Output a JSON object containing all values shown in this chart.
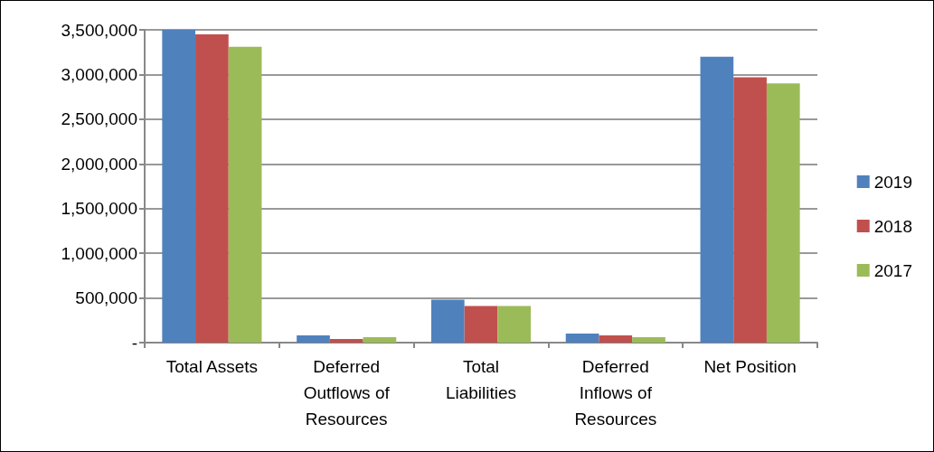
{
  "chart_data": {
    "type": "bar",
    "categories": [
      "Total Assets",
      "Deferred Outflows of Resources",
      "Total Liabilities",
      "Deferred Inflows of Resources",
      "Net Position"
    ],
    "series": [
      {
        "name": "2019",
        "color": "#4f81bd",
        "values": [
          3500000,
          80000,
          480000,
          100000,
          3200000
        ]
      },
      {
        "name": "2018",
        "color": "#c0504d",
        "values": [
          3450000,
          40000,
          410000,
          80000,
          2970000
        ]
      },
      {
        "name": "2017",
        "color": "#9bbb59",
        "values": [
          3310000,
          60000,
          410000,
          60000,
          2900000
        ]
      }
    ],
    "ylim": [
      0,
      3500000
    ],
    "yticks": [
      {
        "value": 0,
        "label": "-"
      },
      {
        "value": 500000,
        "label": "500,000"
      },
      {
        "value": 1000000,
        "label": "1,000,000"
      },
      {
        "value": 1500000,
        "label": "1,500,000"
      },
      {
        "value": 2000000,
        "label": "2,000,000"
      },
      {
        "value": 2500000,
        "label": "2,500,000"
      },
      {
        "value": 3000000,
        "label": "3,000,000"
      },
      {
        "value": 3500000,
        "label": "3,500,000"
      }
    ],
    "grid": "y",
    "legend": "right"
  }
}
